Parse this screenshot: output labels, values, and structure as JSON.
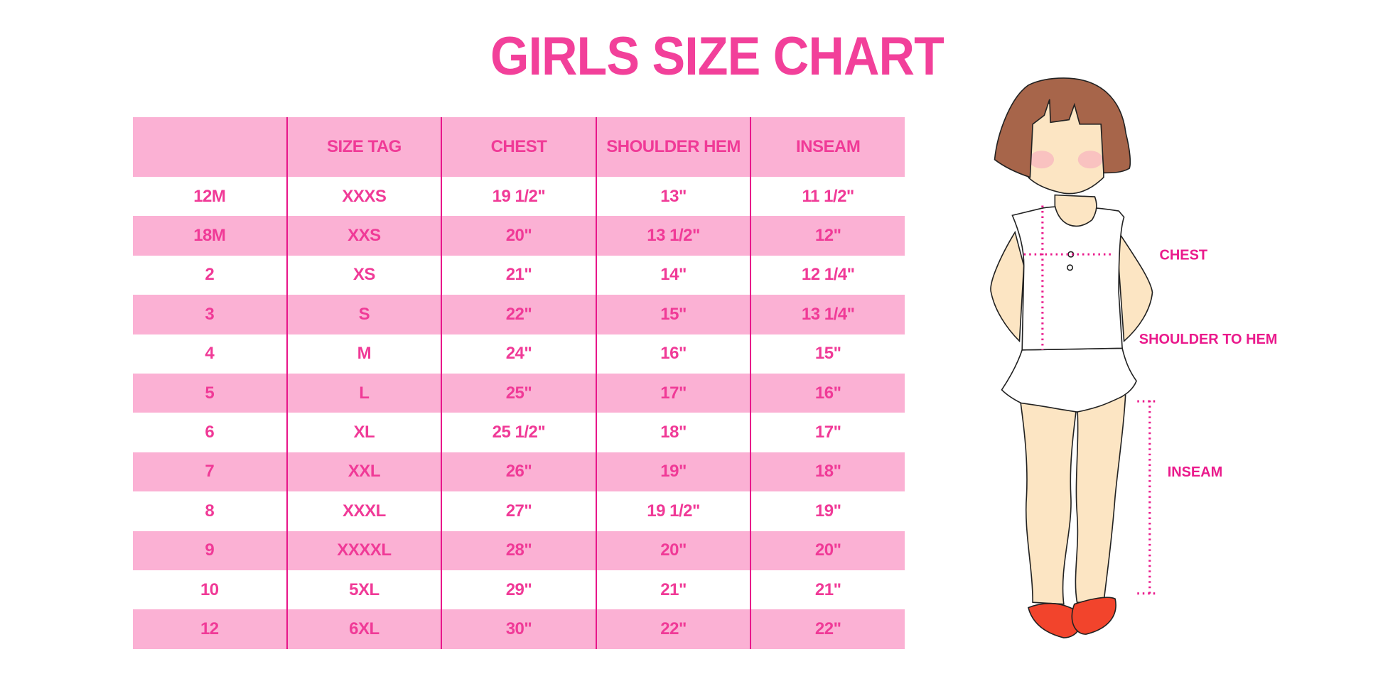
{
  "title": "GIRLS SIZE CHART",
  "colors": {
    "accent": "#f03a97",
    "row_pink": "#fbb1d4",
    "divider": "#e8168a"
  },
  "table": {
    "headers": [
      "",
      "SIZE TAG",
      "CHEST",
      "SHOULDER HEM",
      "INSEAM"
    ],
    "rows": [
      [
        "12M",
        "XXXS",
        "19 1/2\"",
        "13\"",
        "11 1/2\""
      ],
      [
        "18M",
        "XXS",
        "20\"",
        "13 1/2\"",
        "12\""
      ],
      [
        "2",
        "XS",
        "21\"",
        "14\"",
        "12 1/4\""
      ],
      [
        "3",
        "S",
        "22\"",
        "15\"",
        "13 1/4\""
      ],
      [
        "4",
        "M",
        "24\"",
        "16\"",
        "15\""
      ],
      [
        "5",
        "L",
        "25\"",
        "17\"",
        "16\""
      ],
      [
        "6",
        "XL",
        "25 1/2\"",
        "18\"",
        "17\""
      ],
      [
        "7",
        "XXL",
        "26\"",
        "19\"",
        "18\""
      ],
      [
        "8",
        "XXXL",
        "27\"",
        "19 1/2\"",
        "19\""
      ],
      [
        "9",
        "XXXXL",
        "28\"",
        "20\"",
        "20\""
      ],
      [
        "10",
        "5XL",
        "29\"",
        "21\"",
        "21\""
      ],
      [
        "12",
        "6XL",
        "30\"",
        "22\"",
        "22\""
      ]
    ]
  },
  "figure": {
    "labels": {
      "chest": "CHEST",
      "shoulder_to_hem": "SHOULDER TO HEM",
      "inseam": "INSEAM"
    }
  }
}
